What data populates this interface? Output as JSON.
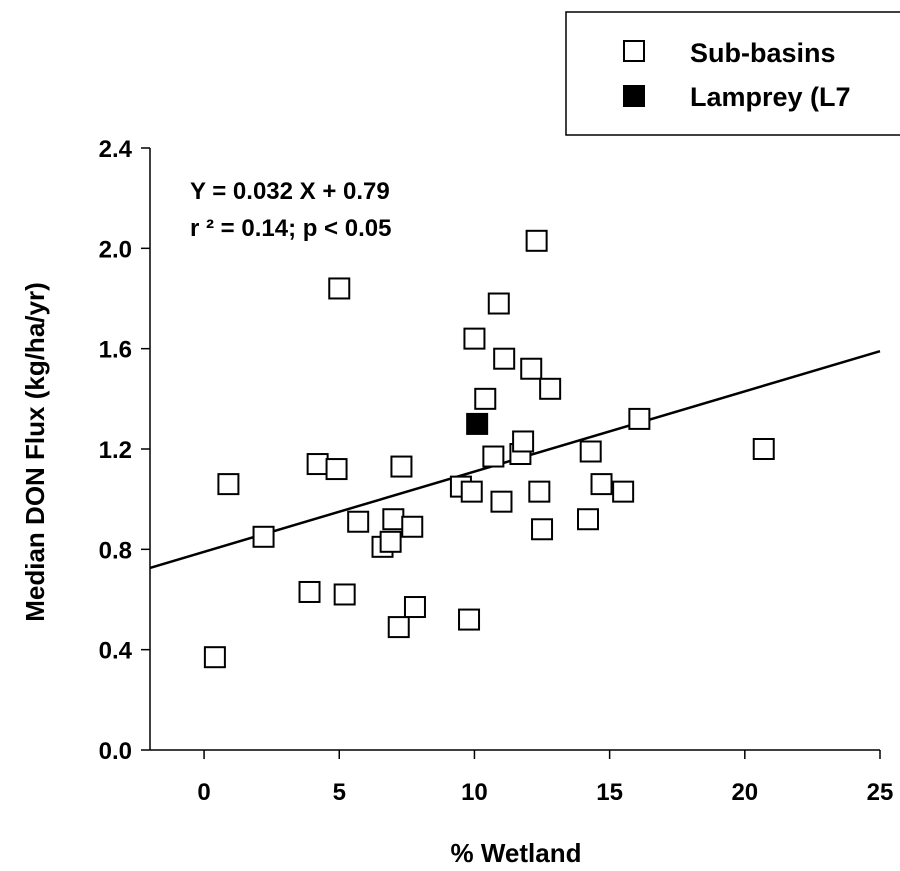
{
  "chart_data": {
    "type": "scatter",
    "xlabel": "% Wetland",
    "ylabel": "Median DON Flux (kg/ha/yr)",
    "xlim": [
      -2,
      25
    ],
    "ylim": [
      0,
      2.4
    ],
    "xticks": [
      "0",
      "5",
      "10",
      "15",
      "20",
      "25"
    ],
    "yticks": [
      "0.0",
      "0.4",
      "0.8",
      "1.2",
      "1.6",
      "2.0",
      "2.4"
    ],
    "grid": false,
    "legend_position": "top-right",
    "annotations": [
      "Y = 0.032 X + 0.79",
      "r ² = 0.14; p < 0.05"
    ],
    "regression": {
      "slope": 0.032,
      "intercept": 0.79,
      "x_range": [
        -2,
        25
      ]
    },
    "series": [
      {
        "name": "Sub-basins",
        "marker": "open-square",
        "points": [
          [
            0.4,
            0.37
          ],
          [
            0.9,
            1.06
          ],
          [
            2.2,
            0.85
          ],
          [
            3.9,
            0.63
          ],
          [
            4.2,
            1.14
          ],
          [
            4.9,
            1.12
          ],
          [
            5.0,
            1.84
          ],
          [
            5.2,
            0.62
          ],
          [
            5.7,
            0.91
          ],
          [
            6.6,
            0.81
          ],
          [
            6.9,
            0.83
          ],
          [
            7.0,
            0.92
          ],
          [
            7.2,
            0.49
          ],
          [
            7.3,
            1.13
          ],
          [
            7.7,
            0.89
          ],
          [
            7.8,
            0.57
          ],
          [
            9.5,
            1.05
          ],
          [
            9.8,
            0.52
          ],
          [
            9.9,
            1.03
          ],
          [
            10.0,
            1.64
          ],
          [
            10.4,
            1.4
          ],
          [
            10.7,
            1.17
          ],
          [
            10.9,
            1.78
          ],
          [
            11.0,
            0.99
          ],
          [
            11.1,
            1.56
          ],
          [
            11.7,
            1.18
          ],
          [
            11.8,
            1.23
          ],
          [
            12.1,
            1.52
          ],
          [
            12.3,
            2.03
          ],
          [
            12.4,
            1.03
          ],
          [
            12.5,
            0.88
          ],
          [
            12.8,
            1.44
          ],
          [
            14.2,
            0.92
          ],
          [
            14.3,
            1.19
          ],
          [
            14.7,
            1.06
          ],
          [
            15.5,
            1.03
          ],
          [
            16.1,
            1.32
          ],
          [
            20.7,
            1.2
          ]
        ]
      },
      {
        "name": "Lamprey (L7",
        "marker": "filled-square",
        "points": [
          [
            10.1,
            1.3
          ]
        ]
      }
    ],
    "colors": {
      "marker_stroke": "#000000",
      "filled": "#000000",
      "line": "#000000"
    }
  }
}
